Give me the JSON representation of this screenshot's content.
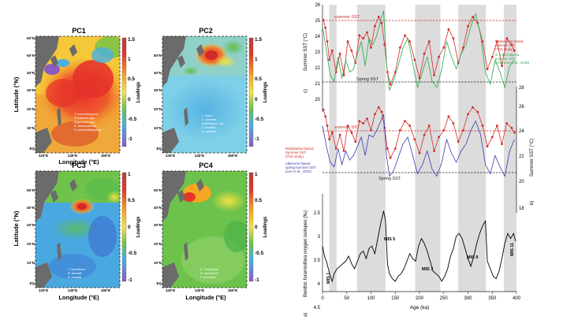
{
  "maps": {
    "lat_label": "Latitude (°N)",
    "lon_label": "Longitude (°E)",
    "loadings_label": "Loadings",
    "lat_ticks": [
      "60°N",
      "50°N",
      "40°N",
      "30°N",
      "20°N",
      "10°N",
      "EQ"
    ],
    "lat_ticks_short": [
      "50°N",
      "40°N",
      "30°N",
      "20°N",
      "10°N",
      "EQ"
    ],
    "lon_ticks": [
      "120°E",
      "140°E",
      "160°E"
    ],
    "panels": [
      {
        "title": "PC1",
        "scale": [
          "1.5",
          "1",
          "0.5",
          "0",
          "-0.5",
          "-1"
        ],
        "species": [
          "T. trachodictyoma",
          "Phorticium spp.",
          "Zygocircus spp.",
          "D. tetrathalamus",
          "D. profunditatispinus"
        ]
      },
      {
        "title": "PC2",
        "scale": [
          "1.5",
          "1",
          "0.5",
          "0",
          "-0.5",
          "-1"
        ],
        "species": [
          "L. minor",
          "C. borealis",
          "Antarctissa ? sp.",
          "L. boreale",
          "A. medusa"
        ]
      },
      {
        "title": "PC3",
        "scale": [
          "1",
          "0.5",
          "0",
          "-0.5",
          "-1"
        ],
        "species": [
          "T. bacciferum",
          "R. boreale",
          "A. campta"
        ]
      },
      {
        "title": "PC4",
        "scale": [
          "1",
          "0.5",
          "0",
          "-0.5",
          "-1"
        ],
        "species": [
          "E. neurogosa",
          "R. trachodum",
          "P. gracilipes"
        ]
      }
    ]
  },
  "timeseries": {
    "panel_c": {
      "letter": "c)",
      "ylabel": "Summer SST (°C)",
      "y_ticks": [
        "26",
        "25",
        "24",
        "23",
        "22",
        "21",
        "20"
      ],
      "summer_line": "summer SST",
      "spring_line": "Spring SST",
      "legend_red": [
        "Radiolarian based",
        "summer SST",
        "(This study)"
      ],
      "legend_green": [
        "G. ruber Mg/Ca",
        "summer SST",
        "(Clemens et al., 2018)"
      ]
    },
    "panel_b": {
      "letter": "b)",
      "ylabel": "Summer SST (°C)",
      "y_ticks": [
        "28",
        "26",
        "24",
        "22",
        "20",
        "18"
      ],
      "summer_line": "summer SST",
      "spring_line": "Spring SST",
      "legend_red": [
        "Radiolarian based",
        "Summer SST",
        "(This study)"
      ],
      "legend_blue": [
        "Alkenone based",
        "spring-summer SST",
        "(Lee et al., 2021)"
      ]
    },
    "panel_a": {
      "letter": "a)",
      "ylabel": "Benthic foraminifera oxygen isotopes (‰)",
      "y_ticks": [
        "2.5",
        "3",
        "3.5",
        "4",
        "4.5"
      ],
      "mis_labels": [
        "MIS 1",
        "MIS 5",
        "MIS 7",
        "MIS 9",
        "MIS 11"
      ]
    },
    "x_ticks": [
      "0",
      "50",
      "100",
      "150",
      "200",
      "250",
      "300",
      "350",
      "400"
    ],
    "xlabel": "Age (ka)"
  },
  "chart_data": [
    {
      "type": "line",
      "panel": "c",
      "title": "",
      "xlabel": "Age (ka)",
      "ylabel": "Summer SST (°C)",
      "ylim": [
        20,
        27
      ],
      "xlim": [
        0,
        400
      ],
      "reference_lines": [
        {
          "label": "summer SST",
          "y": 26.1
        },
        {
          "label": "Spring SST",
          "y": 21.9
        }
      ],
      "series": [
        {
          "name": "Radiolarian based summer SST (This study)",
          "color": "#d42a2a",
          "x": [
            2,
            6,
            10,
            14,
            20,
            28,
            36,
            44,
            52,
            60,
            68,
            76,
            84,
            92,
            100,
            108,
            116,
            122,
            128,
            134,
            140,
            150,
            160,
            170,
            180,
            190,
            200,
            210,
            220,
            230,
            240,
            250,
            260,
            270,
            280,
            290,
            300,
            310,
            320,
            330,
            340,
            350,
            360,
            370,
            380,
            390,
            396
          ],
          "y": [
            26.0,
            25.5,
            24.6,
            23.4,
            24.0,
            22.6,
            23.8,
            22.4,
            24.6,
            24.0,
            23.2,
            25.0,
            24.8,
            25.2,
            24.2,
            25.6,
            26.2,
            25.8,
            24.4,
            22.6,
            21.8,
            22.6,
            24.2,
            25.0,
            24.6,
            23.4,
            22.2,
            23.8,
            24.6,
            22.4,
            23.6,
            24.2,
            25.4,
            24.8,
            23.2,
            24.2,
            25.6,
            26.2,
            25.8,
            24.6,
            22.8,
            23.6,
            24.6,
            23.0,
            24.8,
            24.4,
            24.0
          ]
        },
        {
          "name": "G. ruber Mg/Ca summer SST (Clemens et al., 2018)",
          "color": "#2aa84a",
          "x": [
            0,
            8,
            16,
            24,
            32,
            40,
            48,
            56,
            64,
            72,
            80,
            88,
            96,
            104,
            112,
            120,
            126,
            132,
            138,
            146,
            156,
            166,
            176,
            186,
            196,
            206,
            216,
            226,
            236,
            246,
            256,
            266,
            276,
            286,
            296,
            306,
            316,
            326,
            336,
            346,
            356,
            366,
            376,
            386,
            396
          ],
          "y": [
            25.6,
            24.0,
            22.4,
            22.0,
            23.6,
            22.2,
            23.4,
            22.6,
            22.8,
            23.8,
            24.6,
            23.0,
            24.8,
            24.4,
            25.0,
            26.0,
            26.6,
            23.2,
            21.4,
            22.0,
            23.0,
            24.2,
            24.8,
            23.2,
            21.6,
            22.6,
            23.6,
            22.0,
            21.6,
            22.8,
            24.6,
            23.6,
            22.8,
            23.8,
            24.4,
            25.6,
            26.4,
            25.0,
            22.6,
            21.8,
            23.4,
            22.6,
            21.6,
            23.0,
            23.4
          ]
        }
      ]
    },
    {
      "type": "line",
      "panel": "b",
      "title": "",
      "xlabel": "Age (ka)",
      "ylabel": "Summer SST (°C)",
      "ylim": [
        17,
        28
      ],
      "xlim": [
        0,
        400
      ],
      "reference_lines": [
        {
          "label": "summer SST",
          "y": 26.0
        },
        {
          "label": "Spring SST",
          "y": 21.9
        }
      ],
      "series": [
        {
          "name": "Radiolarian based Summer SST (This study)",
          "color": "#d42a2a",
          "x": [
            2,
            6,
            10,
            14,
            20,
            28,
            36,
            44,
            52,
            60,
            68,
            76,
            84,
            92,
            100,
            108,
            116,
            122,
            128,
            134,
            140,
            150,
            160,
            170,
            180,
            190,
            200,
            210,
            220,
            230,
            240,
            250,
            260,
            270,
            280,
            290,
            300,
            310,
            320,
            330,
            340,
            350,
            360,
            370,
            380,
            390,
            396
          ],
          "y": [
            26.0,
            25.4,
            24.6,
            23.4,
            24.0,
            22.6,
            23.8,
            22.4,
            24.6,
            24.0,
            23.2,
            25.0,
            24.8,
            25.2,
            24.2,
            25.6,
            26.2,
            25.8,
            24.4,
            22.6,
            21.8,
            22.6,
            24.2,
            25.0,
            24.6,
            23.4,
            22.2,
            23.8,
            24.6,
            22.4,
            23.6,
            24.2,
            25.4,
            24.8,
            23.2,
            24.2,
            25.6,
            26.2,
            25.8,
            24.6,
            22.8,
            23.6,
            24.6,
            23.0,
            24.8,
            24.4,
            24.0
          ]
        },
        {
          "name": "Alkenone based spring-summer SST (Lee et al., 2021)",
          "color": "#3a3ab0",
          "x": [
            0,
            8,
            16,
            24,
            32,
            40,
            48,
            56,
            64,
            72,
            80,
            88,
            96,
            104,
            112,
            120,
            126,
            132,
            138,
            146,
            156,
            166,
            176,
            186,
            196,
            206,
            216,
            226,
            236,
            246,
            256,
            266,
            276,
            286,
            296,
            306,
            316,
            326,
            336,
            346,
            356,
            366,
            376,
            386,
            396
          ],
          "y": [
            24.6,
            22.8,
            21.4,
            21.0,
            22.6,
            21.2,
            22.4,
            21.6,
            22.0,
            22.8,
            23.6,
            22.0,
            23.8,
            23.6,
            24.2,
            25.0,
            25.6,
            22.0,
            20.2,
            20.6,
            21.8,
            23.0,
            23.6,
            22.0,
            20.4,
            21.2,
            22.4,
            20.8,
            20.2,
            21.4,
            23.4,
            22.2,
            21.4,
            22.4,
            23.0,
            24.2,
            25.0,
            23.8,
            21.2,
            20.4,
            22.0,
            21.0,
            20.2,
            22.4,
            23.4
          ]
        }
      ]
    },
    {
      "type": "line",
      "panel": "a",
      "title": "",
      "xlabel": "Age (ka)",
      "ylabel": "Benthic foraminifera oxygen isotopes (‰)",
      "ylim": [
        4.5,
        2.4
      ],
      "xlim": [
        0,
        400
      ],
      "series": [
        {
          "name": "Benthic δ18O",
          "color": "#000000",
          "x": [
            0,
            4,
            8,
            12,
            16,
            20,
            24,
            30,
            36,
            42,
            48,
            54,
            60,
            66,
            72,
            78,
            84,
            90,
            96,
            102,
            108,
            114,
            120,
            126,
            130,
            134,
            138,
            144,
            150,
            156,
            162,
            168,
            174,
            180,
            186,
            192,
            198,
            204,
            210,
            216,
            222,
            228,
            234,
            240,
            246,
            252,
            258,
            264,
            270,
            276,
            282,
            288,
            294,
            300,
            306,
            312,
            318,
            324,
            330,
            336,
            340,
            346,
            352,
            358,
            364,
            370,
            376,
            382,
            388,
            394,
            398
          ],
          "y": [
            3.25,
            3.45,
            3.55,
            3.7,
            3.85,
            3.95,
            3.8,
            3.7,
            3.65,
            3.6,
            3.55,
            3.45,
            3.6,
            3.7,
            3.55,
            3.4,
            3.35,
            3.5,
            3.3,
            3.25,
            3.4,
            3.1,
            2.8,
            2.55,
            2.75,
            3.6,
            3.8,
            3.9,
            3.95,
            3.85,
            3.8,
            3.7,
            3.55,
            3.4,
            3.5,
            3.55,
            3.25,
            3.1,
            3.2,
            3.35,
            3.55,
            3.75,
            3.8,
            3.85,
            3.95,
            3.85,
            3.7,
            3.45,
            3.3,
            3.05,
            3.0,
            3.1,
            3.3,
            3.5,
            3.65,
            3.45,
            3.2,
            3.0,
            2.85,
            2.75,
            3.55,
            3.7,
            3.85,
            3.9,
            3.75,
            3.5,
            3.2,
            3.0,
            3.1,
            3.0,
            3.15
          ]
        }
      ]
    }
  ]
}
